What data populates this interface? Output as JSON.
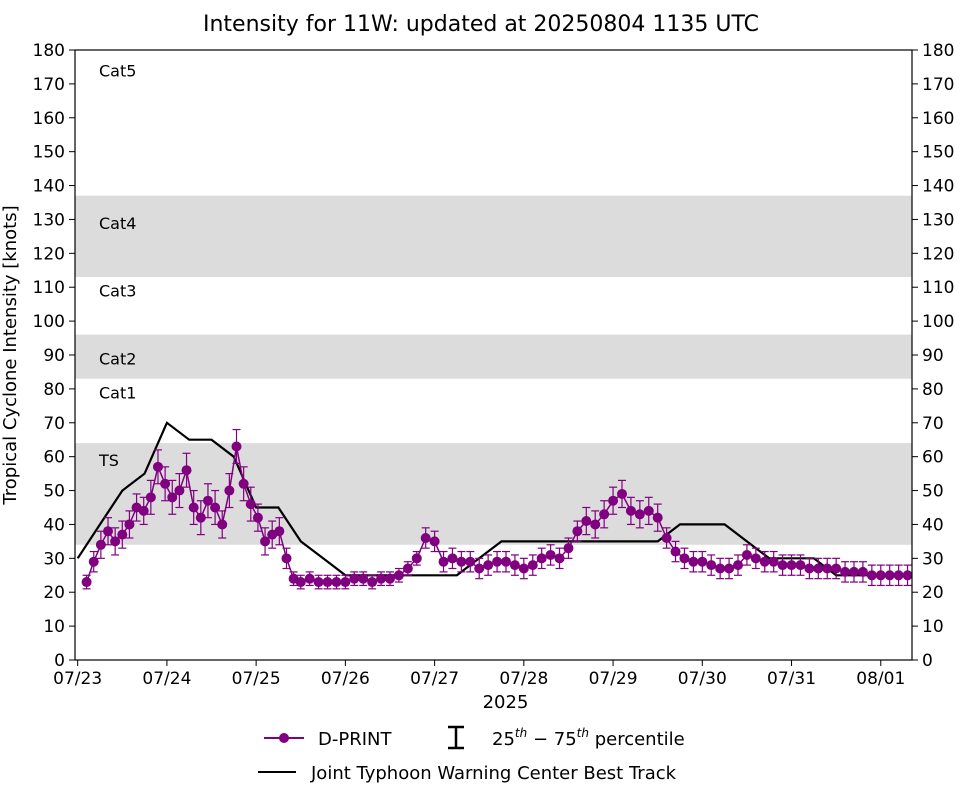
{
  "colors": {
    "dprint": "#800080",
    "best_track": "#000000",
    "band": "#dcdcdc",
    "axes": "#000000"
  },
  "chart_data": {
    "type": "line",
    "title": "Intensity for 11W: updated at 20250804 1135 UTC",
    "ylabel": "Tropical Cyclone Intensity [knots]",
    "xlabel": "2025",
    "ylim": [
      0,
      180
    ],
    "xlim": [
      -0.03,
      9.35
    ],
    "y_ticks": [
      0,
      10,
      20,
      30,
      40,
      50,
      60,
      70,
      80,
      90,
      100,
      110,
      120,
      130,
      140,
      150,
      160,
      170,
      180
    ],
    "x_ticks": [
      {
        "label": "07/23",
        "value": 0
      },
      {
        "label": "07/24",
        "value": 1
      },
      {
        "label": "07/25",
        "value": 2
      },
      {
        "label": "07/26",
        "value": 3
      },
      {
        "label": "07/27",
        "value": 4
      },
      {
        "label": "07/28",
        "value": 5
      },
      {
        "label": "07/29",
        "value": 6
      },
      {
        "label": "07/30",
        "value": 7
      },
      {
        "label": "07/31",
        "value": 8
      },
      {
        "label": "08/01",
        "value": 9
      }
    ],
    "category_bands": [
      {
        "label": "TS",
        "from": 34,
        "to": 64,
        "shaded": true,
        "label_y": 59
      },
      {
        "label": "Cat1",
        "from": 64,
        "to": 83,
        "shaded": false,
        "label_y": 79
      },
      {
        "label": "Cat2",
        "from": 83,
        "to": 96,
        "shaded": true,
        "label_y": 89
      },
      {
        "label": "Cat3",
        "from": 96,
        "to": 113,
        "shaded": false,
        "label_y": 109
      },
      {
        "label": "Cat4",
        "from": 113,
        "to": 137,
        "shaded": true,
        "label_y": 129
      },
      {
        "label": "Cat5",
        "from": 137,
        "to": 180,
        "shaded": false,
        "label_y": 174
      }
    ],
    "series": [
      {
        "name": "Joint Typhoon Warning Center Best Track",
        "kind": "line",
        "x": [
          0,
          0.25,
          0.5,
          0.75,
          1.0,
          1.25,
          1.5,
          1.75,
          2.0,
          2.25,
          2.5,
          2.75,
          3.0,
          3.25,
          3.5,
          3.75,
          4.0,
          4.25,
          4.5,
          4.75,
          5.0,
          5.5,
          6.0,
          6.5,
          6.75,
          7.0,
          7.25,
          7.5,
          7.75,
          8.0,
          8.25,
          8.5,
          8.75,
          9.0,
          9.25
        ],
        "values": [
          30,
          40,
          50,
          55,
          70,
          65,
          65,
          60,
          45,
          45,
          35,
          30,
          25,
          25,
          25,
          25,
          25,
          25,
          30,
          35,
          35,
          35,
          35,
          35,
          40,
          40,
          40,
          35,
          30,
          30,
          30,
          25,
          25,
          25,
          25
        ]
      },
      {
        "name": "D-PRINT",
        "kind": "points_with_errorbars",
        "x": [
          0.1,
          0.18,
          0.26,
          0.34,
          0.42,
          0.5,
          0.58,
          0.66,
          0.74,
          0.82,
          0.9,
          0.98,
          1.06,
          1.14,
          1.22,
          1.3,
          1.38,
          1.46,
          1.54,
          1.62,
          1.7,
          1.78,
          1.86,
          1.94,
          2.02,
          2.1,
          2.18,
          2.26,
          2.34,
          2.42,
          2.5,
          2.6,
          2.7,
          2.8,
          2.9,
          3.0,
          3.1,
          3.2,
          3.3,
          3.4,
          3.5,
          3.6,
          3.7,
          3.8,
          3.9,
          4.0,
          4.1,
          4.2,
          4.3,
          4.4,
          4.5,
          4.6,
          4.7,
          4.8,
          4.9,
          5.0,
          5.1,
          5.2,
          5.3,
          5.4,
          5.5,
          5.6,
          5.7,
          5.8,
          5.9,
          6.0,
          6.1,
          6.2,
          6.3,
          6.4,
          6.5,
          6.6,
          6.7,
          6.8,
          6.9,
          7.0,
          7.1,
          7.2,
          7.3,
          7.4,
          7.5,
          7.6,
          7.7,
          7.8,
          7.9,
          8.0,
          8.1,
          8.2,
          8.3,
          8.4,
          8.5,
          8.6,
          8.7,
          8.8,
          8.9,
          9.0,
          9.1,
          9.2,
          9.3
        ],
        "values": [
          23,
          29,
          34,
          38,
          35,
          37,
          40,
          45,
          44,
          48,
          57,
          52,
          48,
          50,
          56,
          45,
          42,
          47,
          45,
          40,
          50,
          63,
          52,
          46,
          42,
          35,
          37,
          38,
          30,
          24,
          23,
          24,
          23,
          23,
          23,
          23,
          24,
          24,
          23,
          24,
          24,
          25,
          27,
          30,
          36,
          35,
          29,
          30,
          29,
          29,
          27,
          28,
          29,
          29,
          28,
          27,
          28,
          30,
          31,
          30,
          33,
          38,
          41,
          40,
          43,
          47,
          49,
          44,
          43,
          44,
          42,
          36,
          32,
          30,
          29,
          29,
          28,
          27,
          27,
          28,
          31,
          30,
          29,
          29,
          28,
          28,
          28,
          27,
          27,
          27,
          27,
          26,
          26,
          26,
          25,
          25,
          25,
          25,
          25
        ],
        "q25": [
          21,
          26,
          30,
          34,
          31,
          33,
          36,
          41,
          40,
          43,
          52,
          47,
          43,
          45,
          51,
          40,
          37,
          42,
          40,
          36,
          45,
          58,
          47,
          41,
          38,
          31,
          33,
          34,
          27,
          22,
          21,
          22,
          21,
          21,
          21,
          21,
          22,
          22,
          21,
          22,
          22,
          23,
          25,
          28,
          33,
          32,
          26,
          27,
          26,
          26,
          24,
          25,
          26,
          26,
          25,
          24,
          25,
          27,
          28,
          27,
          30,
          35,
          37,
          36,
          39,
          43,
          45,
          40,
          39,
          40,
          38,
          33,
          29,
          27,
          26,
          26,
          25,
          24,
          24,
          25,
          28,
          27,
          26,
          26,
          25,
          25,
          25,
          24,
          24,
          24,
          24,
          23,
          23,
          23,
          22,
          22,
          22,
          22,
          22
        ],
        "q75": [
          25,
          32,
          38,
          42,
          39,
          41,
          44,
          49,
          48,
          53,
          62,
          57,
          53,
          55,
          61,
          50,
          47,
          52,
          50,
          44,
          55,
          68,
          57,
          51,
          46,
          39,
          41,
          42,
          33,
          26,
          25,
          26,
          25,
          25,
          25,
          25,
          26,
          26,
          25,
          26,
          26,
          27,
          29,
          32,
          39,
          38,
          32,
          33,
          32,
          32,
          30,
          31,
          32,
          32,
          31,
          30,
          31,
          33,
          34,
          33,
          36,
          41,
          45,
          44,
          47,
          51,
          53,
          48,
          47,
          48,
          46,
          39,
          35,
          33,
          32,
          32,
          31,
          30,
          30,
          31,
          34,
          33,
          32,
          32,
          31,
          31,
          31,
          30,
          30,
          30,
          30,
          29,
          29,
          29,
          28,
          28,
          28,
          28,
          28
        ]
      }
    ],
    "legend": {
      "placement": "bottom-center",
      "dprint_label": "D-PRINT",
      "percentile_label": "25th − 75th percentile",
      "best_track_label": "Joint Typhoon Warning Center Best Track"
    }
  }
}
